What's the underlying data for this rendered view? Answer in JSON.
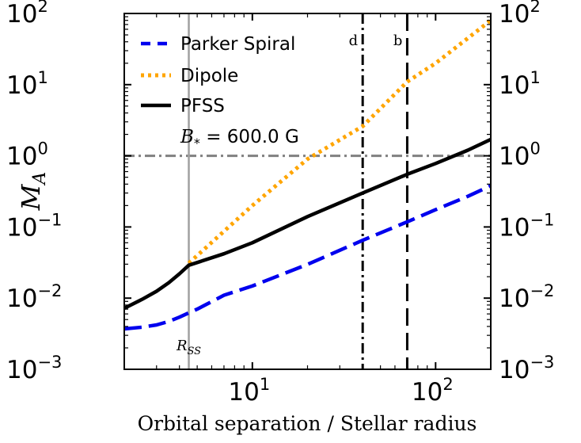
{
  "chart_data": {
    "type": "line",
    "title": "",
    "xlabel": "Orbital separation / Stellar radius",
    "ylabel": "M",
    "ylabel_sub": "A",
    "xscale": "log",
    "yscale": "log",
    "xlim": [
      2.0,
      200.0
    ],
    "ylim": [
      0.001,
      100
    ],
    "x_ticks": [
      {
        "value": 10,
        "base": "10",
        "exp": "1"
      },
      {
        "value": 100,
        "base": "10",
        "exp": "2"
      }
    ],
    "y_ticks": [
      {
        "value": 0.001,
        "base": "10",
        "exp": "−3"
      },
      {
        "value": 0.01,
        "base": "10",
        "exp": "−2"
      },
      {
        "value": 0.1,
        "base": "10",
        "exp": "−1"
      },
      {
        "value": 1,
        "base": "10",
        "exp": "0"
      },
      {
        "value": 10,
        "base": "10",
        "exp": "1"
      },
      {
        "value": 100,
        "base": "10",
        "exp": "2"
      }
    ],
    "series": [
      {
        "name": "Parker Spiral",
        "color": "#0000ee",
        "style": "dashed",
        "x": [
          2.0,
          2.5,
          3.0,
          3.5,
          4.0,
          4.5,
          5,
          7,
          10,
          20,
          40,
          70,
          100,
          150,
          200
        ],
        "y": [
          0.0037,
          0.0039,
          0.0042,
          0.0047,
          0.0054,
          0.0062,
          0.007,
          0.011,
          0.0148,
          0.0298,
          0.065,
          0.118,
          0.175,
          0.27,
          0.38
        ]
      },
      {
        "name": "Dipole",
        "color": "#ffa500",
        "style": "dotted",
        "x": [
          4.5,
          10,
          20,
          40,
          70,
          100,
          200
        ],
        "y": [
          0.031,
          0.2,
          0.9,
          2.6,
          11,
          20,
          80
        ]
      },
      {
        "name": "PFSS",
        "color": "#000000",
        "style": "solid",
        "x": [
          2.0,
          2.5,
          3.0,
          3.5,
          4.0,
          4.5,
          7,
          10,
          20,
          40,
          70,
          100,
          150,
          200
        ],
        "y": [
          0.0072,
          0.0096,
          0.0125,
          0.0165,
          0.022,
          0.029,
          0.042,
          0.06,
          0.14,
          0.3,
          0.55,
          0.78,
          1.2,
          1.7
        ]
      }
    ],
    "reference_lines": [
      {
        "orientation": "horizontal",
        "value": 1,
        "color": "#808080",
        "style": "dashdot",
        "label": ""
      },
      {
        "orientation": "vertical",
        "value": 4.5,
        "color": "#a0a0a0",
        "style": "solid",
        "label": "R",
        "label_sub": "SS"
      },
      {
        "orientation": "vertical",
        "value": 40,
        "color": "#000000",
        "style": "dashdot",
        "label": "d"
      },
      {
        "orientation": "vertical",
        "value": 70,
        "color": "#000000",
        "style": "dashed",
        "label": "b"
      }
    ],
    "annotation": {
      "prefix": "B",
      "sub": "*",
      "text": " = 600.0 G"
    },
    "legend_position": "upper-left"
  }
}
